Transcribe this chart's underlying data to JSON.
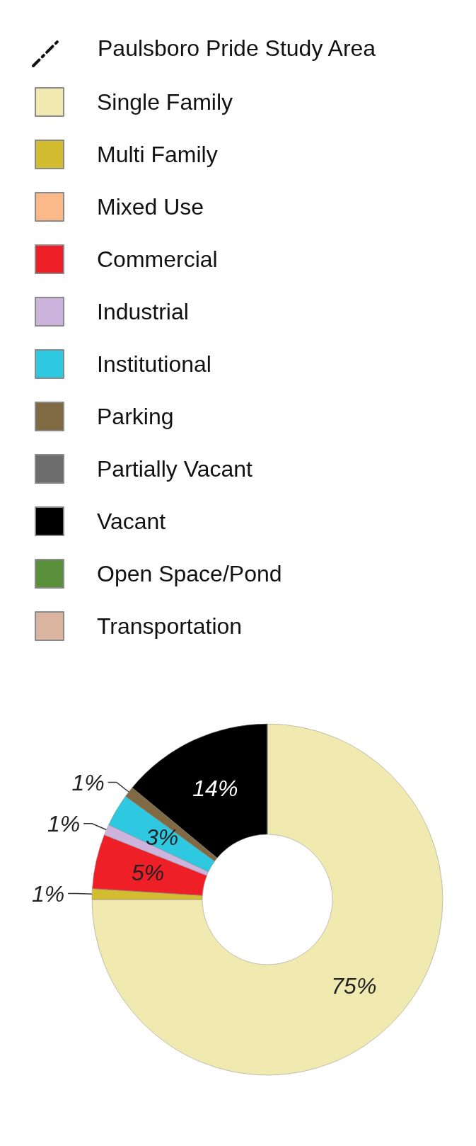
{
  "chart_data": {
    "type": "donut",
    "legend_title": "Paulsboro Pride Study Area",
    "legend": "top left",
    "value_labels": [
      "75%",
      "1%",
      null,
      "5%",
      "1%",
      "3%",
      "1%",
      null,
      "14%",
      null,
      null
    ],
    "categories": [
      "Single Family",
      "Multi Family",
      "Mixed Use",
      "Commercial",
      "Industrial",
      "Institutional",
      "Parking",
      "Partially Vacant",
      "Vacant",
      "Open Space/Pond",
      "Transportation"
    ],
    "values": [
      75,
      1,
      0,
      5,
      1,
      3,
      1,
      0,
      14,
      0,
      0
    ],
    "colors": [
      "#f0e9b0",
      "#d4bc30",
      "#fbb98a",
      "#ee1f26",
      "#cdb4dc",
      "#2ec8e0",
      "#7f6a44",
      "#6d6d6d",
      "#000000",
      "#5a8f3c",
      "#dbb4a0"
    ]
  }
}
